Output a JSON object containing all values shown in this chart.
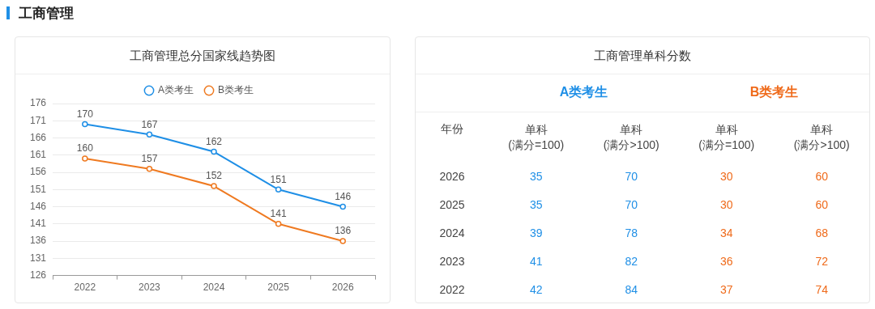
{
  "chart_data": [
    {
      "type": "line",
      "annotations": [
        "工商管理"
      ],
      "title": "工商管理总分国家线趋势图",
      "categories": [
        "2022",
        "2023",
        "2024",
        "2025",
        "2026"
      ],
      "series": [
        {
          "name": "A类考生",
          "color": "#1f8fe6",
          "values": [
            170,
            167,
            162,
            151,
            146
          ]
        },
        {
          "name": "B类考生",
          "color": "#ef7a21",
          "values": [
            160,
            157,
            152,
            141,
            136
          ]
        }
      ],
      "ylim": [
        126,
        176
      ],
      "yticks": [
        126,
        131,
        136,
        141,
        146,
        151,
        156,
        161,
        166,
        171,
        176
      ],
      "grid": "y",
      "legend": "top",
      "marker": "circle",
      "data_labels": true
    },
    {
      "type": "heatmap",
      "data_labels": true,
      "title": "工商管理单科分数",
      "annotations": [
        "A类考生",
        "B类考生"
      ],
      "ylabel": "年份",
      "categories": [
        "单科\n(满分=100)",
        "单科\n(满分>100)",
        "单科\n(满分=100)",
        "单科\n(满分>100)"
      ],
      "colors": [
        "#1f8fe6",
        "#1f8fe6",
        "#ef6a1a",
        "#ef6a1a"
      ],
      "y_categories": [
        "2026",
        "2025",
        "2024",
        "2023",
        "2022"
      ],
      "cells": [
        [
          35,
          70,
          30,
          60
        ],
        [
          35,
          70,
          30,
          60
        ],
        [
          39,
          78,
          34,
          68
        ],
        [
          41,
          82,
          36,
          72
        ],
        [
          42,
          84,
          37,
          74
        ]
      ]
    }
  ]
}
